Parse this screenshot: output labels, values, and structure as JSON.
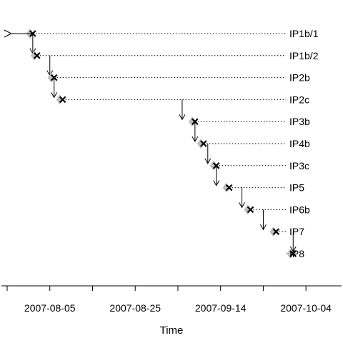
{
  "chart_data": {
    "type": "timeline",
    "title": "",
    "xlabel": "Time",
    "ylabel": "",
    "x_axis": {
      "type": "date",
      "range": [
        "2007-07-26",
        "2007-10-11"
      ],
      "tick_labels": [
        "2007-08-05",
        "2007-08-25",
        "2007-09-14",
        "2007-10-04"
      ],
      "minor_ticks": [
        "2007-07-26",
        "2007-08-15",
        "2007-09-04",
        "2007-09-24"
      ]
    },
    "rows": [
      {
        "label": "IP1b/1",
        "date": "2007-08-01",
        "arrow_from": null
      },
      {
        "label": "IP1b/2",
        "date": "2007-08-02",
        "arrow_from": "2007-08-01"
      },
      {
        "label": "IP2b",
        "date": "2007-08-06",
        "arrow_from": "2007-08-05"
      },
      {
        "label": "IP2c",
        "date": "2007-08-08",
        "arrow_from": "2007-08-06"
      },
      {
        "label": "IP3b",
        "date": "2007-09-08",
        "arrow_from": "2007-09-05"
      },
      {
        "label": "IP4b",
        "date": "2007-09-10",
        "arrow_from": "2007-09-08"
      },
      {
        "label": "IP3c",
        "date": "2007-09-13",
        "arrow_from": "2007-09-11"
      },
      {
        "label": "IP5",
        "date": "2007-09-16",
        "arrow_from": "2007-09-13"
      },
      {
        "label": "IP6b",
        "date": "2007-09-21",
        "arrow_from": "2007-09-19"
      },
      {
        "label": "IP7",
        "date": "2007-09-27",
        "arrow_from": "2007-09-24"
      },
      {
        "label": "IP8",
        "date": "2007-10-01",
        "arrow_from": "2007-10-01"
      }
    ],
    "start_marker_date": "2007-07-28",
    "colors": {
      "line": "#000000",
      "diamond": "#bdbdbd",
      "marker": "#000000"
    }
  }
}
